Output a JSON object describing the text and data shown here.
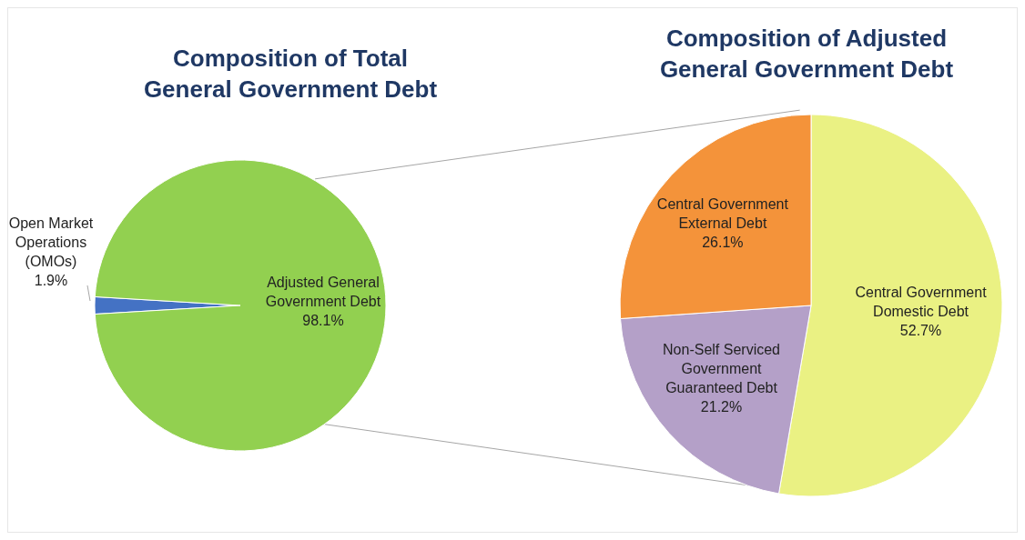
{
  "chart_data": [
    {
      "type": "pie",
      "title": "Composition of Total General Government Debt",
      "categories": [
        "Open Market Operations (OMOs)",
        "Adjusted General Government Debt"
      ],
      "values": [
        1.9,
        98.1
      ],
      "colors": [
        "#4472c4",
        "#92d050"
      ],
      "value_labels": [
        "1.9%",
        "98.1%"
      ]
    },
    {
      "type": "pie",
      "title": "Composition of Adjusted General Government Debt",
      "categories": [
        "Central Government Domestic Debt",
        "Non-Self Serviced Government Guaranteed Debt",
        "Central Government External Debt"
      ],
      "values": [
        52.7,
        21.2,
        26.1
      ],
      "colors": [
        "#eaf183",
        "#b4a0c8",
        "#f4933a"
      ],
      "value_labels": [
        "52.7%",
        "21.2%",
        "26.1%"
      ]
    }
  ]
}
